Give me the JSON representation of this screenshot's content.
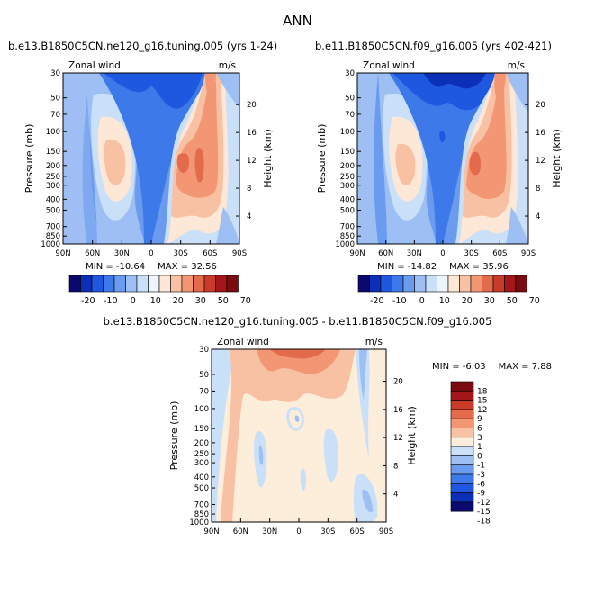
{
  "page_title": "ANN",
  "colors": {
    "main_scale": [
      "#0a0a6e",
      "#0c2fb8",
      "#1f58e0",
      "#3e79ea",
      "#6a9bef",
      "#9ebff4",
      "#cadff8",
      "#eef4fc",
      "#fde7d6",
      "#f8c1a3",
      "#f39674",
      "#e36a4a",
      "#c93a28",
      "#a3161a",
      "#7a0b10"
    ],
    "diff_scale": [
      "#0a0a6e",
      "#0c2fb8",
      "#1f58e0",
      "#3e79ea",
      "#6a9bef",
      "#9ebff4",
      "#cadff8",
      "#fdeedc",
      "#f8c1a3",
      "#f39674",
      "#e36a4a",
      "#c93a28",
      "#a3161a",
      "#7a0b10"
    ]
  },
  "chart_data": [
    {
      "type": "contour",
      "title": "b.e13.B1850C5CN.ne120_g16.tuning.005 (yrs 1-24)",
      "variable": "Zonal wind",
      "units": "m/s",
      "xlabel": "",
      "ylabel": "Pressure (mb)",
      "y2label": "Height (km)",
      "x_ticks": [
        "90N",
        "60N",
        "30N",
        "0",
        "30S",
        "60S",
        "90S"
      ],
      "y_ticks": [
        30,
        50,
        70,
        100,
        150,
        200,
        250,
        300,
        400,
        500,
        700,
        850,
        1000
      ],
      "y2_ticks": [
        20,
        16,
        12,
        8,
        4
      ],
      "min_label": "MIN = ",
      "min": -10.64,
      "max_label": "MAX = ",
      "max": 32.56,
      "colorbar_labels": [
        "-20",
        "-10",
        "0",
        "10",
        "20",
        "30",
        "50",
        "70"
      ]
    },
    {
      "type": "contour",
      "title": "b.e11.B1850C5CN.f09_g16.005 (yrs 402-421)",
      "variable": "Zonal wind",
      "units": "m/s",
      "xlabel": "",
      "ylabel": "Pressure (mb)",
      "y2label": "Height (km)",
      "x_ticks": [
        "90N",
        "60N",
        "30N",
        "0",
        "30S",
        "60S",
        "90S"
      ],
      "y_ticks": [
        30,
        50,
        70,
        100,
        150,
        200,
        250,
        300,
        400,
        500,
        700,
        850,
        1000
      ],
      "y2_ticks": [
        20,
        16,
        12,
        8,
        4
      ],
      "min_label": "MIN = ",
      "min": -14.82,
      "max_label": "MAX = ",
      "max": 35.96,
      "colorbar_labels": [
        "-20",
        "-10",
        "0",
        "10",
        "20",
        "30",
        "50",
        "70"
      ]
    },
    {
      "type": "contour",
      "title": "b.e13.B1850C5CN.ne120_g16.tuning.005 - b.e11.B1850C5CN.f09_g16.005",
      "variable": "Zonal wind",
      "units": "m/s",
      "xlabel": "",
      "ylabel": "Pressure (mb)",
      "y2label": "Height (km)",
      "x_ticks": [
        "90N",
        "60N",
        "30N",
        "0",
        "30S",
        "60S",
        "90S"
      ],
      "y_ticks": [
        30,
        50,
        70,
        100,
        150,
        200,
        250,
        300,
        400,
        500,
        700,
        850,
        1000
      ],
      "y2_ticks": [
        20,
        16,
        12,
        8,
        4
      ],
      "min_label": "MIN = ",
      "min": -6.03,
      "max_label": "MAX = ",
      "max": 7.88,
      "colorbar_labels": [
        "18",
        "15",
        "12",
        "9",
        "6",
        "3",
        "1",
        "0",
        "-1",
        "-3",
        "-6",
        "-9",
        "-12",
        "-15",
        "-18"
      ]
    }
  ]
}
